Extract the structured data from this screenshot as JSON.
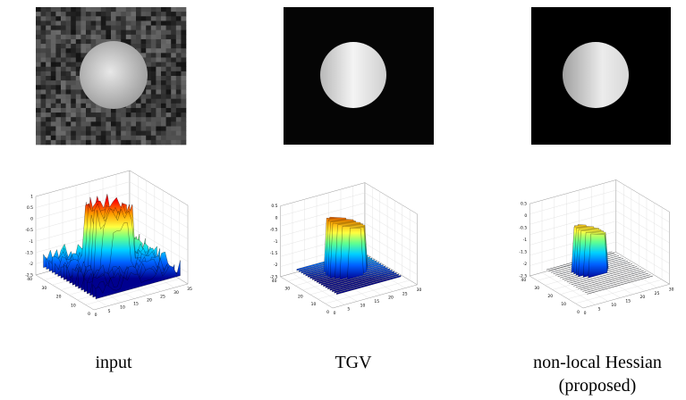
{
  "panels": [
    {
      "caption": [
        "input"
      ],
      "z_ticks": [
        "1",
        "0.5",
        "0",
        "-0.5",
        "-1",
        "-1.5",
        "-2",
        "-2.5"
      ],
      "y_ticks": [
        "40",
        "30",
        "20",
        "10",
        "0"
      ],
      "x_ticks": [
        "0",
        "5",
        "10",
        "15",
        "20",
        "25",
        "30",
        "35"
      ]
    },
    {
      "caption": [
        "TGV"
      ],
      "z_ticks": [
        "0.5",
        "0",
        "-0.5",
        "-1",
        "-1.5",
        "-2",
        "-2.5"
      ],
      "y_ticks": [
        "40",
        "30",
        "20",
        "10",
        "0"
      ],
      "x_ticks": [
        "0",
        "5",
        "10",
        "15",
        "20",
        "25",
        "30"
      ]
    },
    {
      "caption": [
        "non-local Hessian",
        "(proposed)"
      ],
      "z_ticks": [
        "0.5",
        "0",
        "-0.5",
        "-1",
        "-1.5",
        "-2",
        "-2.5"
      ],
      "y_ticks": [
        "40",
        "30",
        "20",
        "10",
        "0"
      ],
      "x_ticks": [
        "0",
        "5",
        "10",
        "15",
        "20",
        "25",
        "30"
      ]
    }
  ]
}
